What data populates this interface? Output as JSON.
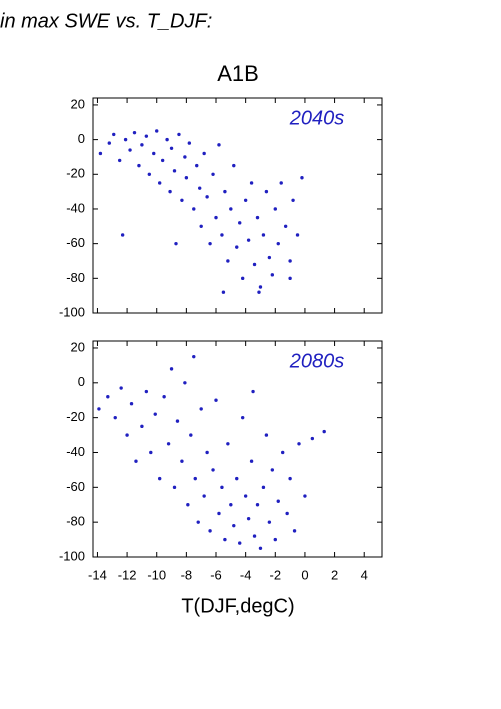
{
  "page_title": "in max SWE vs. T_DJF:",
  "chart_data": [
    {
      "type": "scatter",
      "title": "A1B",
      "annotation": "2040s",
      "color": "#2020c0",
      "xlim": [
        -14.3,
        5.2
      ],
      "ylim": [
        -100,
        24
      ],
      "xticks": [
        -14,
        -12,
        -10,
        -8,
        -6,
        -4,
        -2,
        0,
        2,
        4
      ],
      "yticks": [
        20,
        0,
        -20,
        -40,
        -60,
        -80,
        -100
      ],
      "x": [
        -13.8,
        -13.2,
        -12.9,
        -12.5,
        -12.1,
        -11.8,
        -11.5,
        -11.2,
        -11,
        -10.7,
        -10.5,
        -10.2,
        -10,
        -9.8,
        -9.6,
        -9.3,
        -9.1,
        -9,
        -8.8,
        -8.5,
        -8.3,
        -8.1,
        -8,
        -7.8,
        -7.5,
        -7.3,
        -7.1,
        -7,
        -6.8,
        -6.6,
        -6.4,
        -6.2,
        -6,
        -5.8,
        -5.6,
        -5.4,
        -5.2,
        -5,
        -4.8,
        -4.6,
        -4.4,
        -4.2,
        -4,
        -3.8,
        -3.6,
        -3.4,
        -3.2,
        -3,
        -2.8,
        -2.6,
        -2.4,
        -2.2,
        -2,
        -1.8,
        -1.6,
        -1.3,
        -1,
        -0.8,
        -0.5,
        -0.2,
        -12.3,
        -8.7,
        -5.5,
        -3.1,
        -1
      ],
      "values": [
        -8,
        -2,
        3,
        -12,
        0,
        -6,
        4,
        -15,
        -3,
        2,
        -20,
        -8,
        5,
        -25,
        -12,
        0,
        -30,
        -5,
        -18,
        3,
        -35,
        -10,
        -22,
        -2,
        -40,
        -15,
        -28,
        -50,
        -8,
        -33,
        -60,
        -20,
        -45,
        -3,
        -55,
        -30,
        -70,
        -40,
        -15,
        -62,
        -48,
        -80,
        -35,
        -58,
        -25,
        -72,
        -45,
        -85,
        -55,
        -30,
        -68,
        -78,
        -40,
        -60,
        -25,
        -50,
        -70,
        -35,
        -55,
        -22,
        -55,
        -60,
        -88,
        -88,
        -80
      ]
    },
    {
      "type": "scatter",
      "annotation": "2080s",
      "x_label": "T(DJF,degC)",
      "color": "#2020c0",
      "xlim": [
        -14.3,
        5.2
      ],
      "ylim": [
        -100,
        24
      ],
      "xticks": [
        -14,
        -12,
        -10,
        -8,
        -6,
        -4,
        -2,
        0,
        2,
        4
      ],
      "yticks": [
        20,
        0,
        -20,
        -40,
        -60,
        -80,
        -100
      ],
      "x": [
        -13.9,
        -13.3,
        -12.8,
        -12.4,
        -12,
        -11.7,
        -11.4,
        -11,
        -10.7,
        -10.4,
        -10.1,
        -9.8,
        -9.5,
        -9.2,
        -9,
        -8.8,
        -8.6,
        -8.3,
        -8.1,
        -7.9,
        -7.7,
        -7.4,
        -7.2,
        -7,
        -6.8,
        -6.6,
        -6.4,
        -6.2,
        -6,
        -5.8,
        -5.6,
        -5.4,
        -5.2,
        -5,
        -4.8,
        -4.6,
        -4.4,
        -4.2,
        -4,
        -3.8,
        -3.6,
        -3.4,
        -3.2,
        -3,
        -2.8,
        -2.6,
        -2.4,
        -2.2,
        -2,
        -1.8,
        -1.5,
        -1.2,
        -1,
        -0.7,
        -0.4,
        0,
        0.5,
        1.3,
        -7.5,
        -3.5
      ],
      "values": [
        -15,
        -8,
        -20,
        -3,
        -30,
        -12,
        -45,
        -25,
        -5,
        -40,
        -18,
        -55,
        -8,
        -35,
        8,
        -60,
        -22,
        -45,
        0,
        -70,
        -30,
        -55,
        -80,
        -15,
        -65,
        -40,
        -85,
        -50,
        -10,
        -75,
        -60,
        -90,
        -35,
        -70,
        -82,
        -55,
        -92,
        -20,
        -65,
        -78,
        -45,
        -88,
        -70,
        -95,
        -60,
        -30,
        -80,
        -50,
        -90,
        -68,
        -40,
        -75,
        -55,
        -85,
        -35,
        -65,
        -32,
        -28,
        15,
        -5
      ]
    }
  ]
}
